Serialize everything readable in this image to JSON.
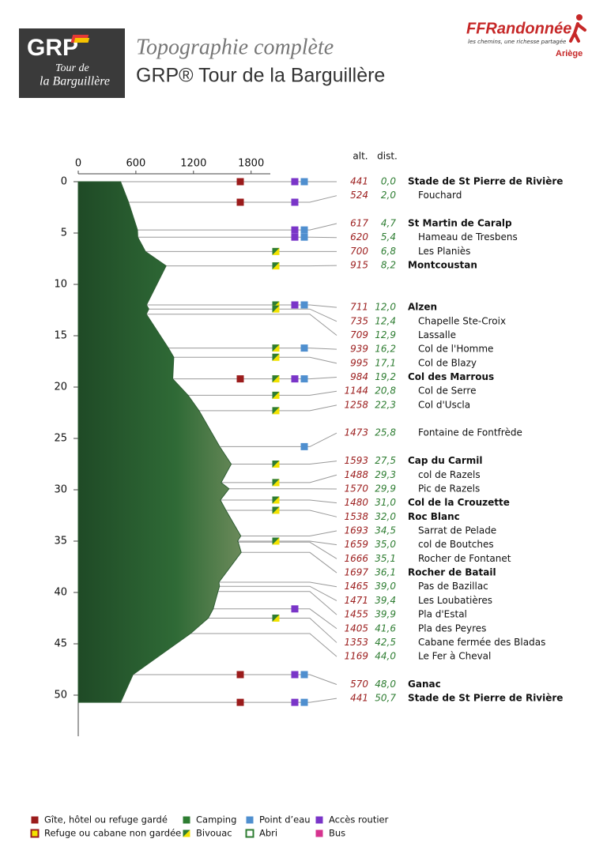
{
  "logo": {
    "title": "GRP",
    "lines": [
      "Tour de",
      "la Barguillère"
    ]
  },
  "brand": {
    "name": "FFRandonnée",
    "tagline": "les chemins, une richesse partagée",
    "region": "Ariège"
  },
  "chart_data": {
    "type": "profile",
    "title": "Topographie complète",
    "subtitle": "GRP® Tour de la Barguillère",
    "column_labels": [
      "alt.",
      "dist."
    ],
    "xlim": [
      0,
      2000
    ],
    "xticks": [
      0,
      600,
      1200,
      1800
    ],
    "ylim": [
      0,
      54
    ],
    "yticks": [
      0,
      5,
      10,
      15,
      20,
      25,
      30,
      35,
      40,
      45,
      50
    ],
    "color": "#2f5e34",
    "categories": [
      "Stade de St Pierre de Rivière",
      "Fouchard",
      "St Martin de Caralp",
      "Hameau de Tresbens",
      "Les Planiès",
      "Montcoustan",
      "Alzen",
      "Chapelle Ste-Croix",
      "Lassalle",
      "Col de l'Homme",
      "Col de Blazy",
      "Col des Marrous",
      "Col de Serre",
      "Col d'Uscla",
      "Fontaine de Fontfrède",
      "Cap du Carmil",
      "col de Razels",
      "Pic de Razels",
      "Col de la Crouzette",
      "Roc Blanc",
      "Sarrat de Pelade",
      "col de Boutches",
      "Rocher de Fontanet",
      "Rocher de Batail",
      "Pas de Bazillac",
      "Les Loubatières",
      "Pla d'Estal",
      "Pla des Peyres",
      "Cabane fermée des Bladas",
      "Le Fer à Cheval",
      "Ganac",
      "Stade de St Pierre de Rivière"
    ],
    "values": [
      441,
      524,
      617,
      620,
      700,
      915,
      711,
      735,
      709,
      939,
      995,
      984,
      1144,
      1258,
      1473,
      1593,
      1488,
      1570,
      1480,
      1538,
      1693,
      1659,
      1666,
      1697,
      1465,
      1471,
      1455,
      1405,
      1353,
      1169,
      570,
      441
    ],
    "dist": [
      0,
      2,
      4.7,
      5.4,
      6.8,
      8.2,
      12,
      12.4,
      12.9,
      16.2,
      17.1,
      19.2,
      20.8,
      22.3,
      25.8,
      27.5,
      29.3,
      29.9,
      31,
      32,
      34.5,
      35,
      35.1,
      36.1,
      39,
      39.4,
      39.9,
      41.6,
      42.5,
      44,
      48,
      50.7
    ],
    "dist_labels": [
      "0,0",
      "2,0",
      "4,7",
      "5,4",
      "6,8",
      "8,2",
      "12,0",
      "12,4",
      "12,9",
      "16,2",
      "17,1",
      "19,2",
      "20,8",
      "22,3",
      "25,8",
      "27,5",
      "29,3",
      "29,9",
      "31,0",
      "32,0",
      "34,5",
      "35,0",
      "35,1",
      "36,1",
      "39,0",
      "39,4",
      "39,9",
      "41,6",
      "42,5",
      "44,0",
      "48,0",
      "50,7"
    ],
    "major": [
      true,
      false,
      true,
      false,
      false,
      true,
      true,
      false,
      false,
      false,
      false,
      true,
      false,
      false,
      false,
      true,
      false,
      false,
      true,
      true,
      false,
      false,
      false,
      true,
      false,
      false,
      false,
      false,
      false,
      false,
      true,
      true
    ],
    "icons": [
      [
        0,
        3,
        2
      ],
      [
        0,
        3
      ],
      [
        3,
        2
      ],
      [
        3,
        2
      ],
      [
        5
      ],
      [
        5
      ],
      [
        5,
        3,
        2
      ],
      [
        5
      ],
      [],
      [
        5,
        2
      ],
      [
        5
      ],
      [
        0,
        5,
        3,
        2
      ],
      [
        5
      ],
      [
        5
      ],
      [
        2
      ],
      [
        5
      ],
      [
        5
      ],
      [],
      [
        5
      ],
      [
        5
      ],
      [],
      [
        5
      ],
      [],
      [],
      [],
      [],
      [],
      [
        3
      ],
      [
        5
      ],
      [],
      [
        0,
        3,
        2
      ],
      [
        0,
        3,
        2
      ]
    ],
    "alt_color": "#9b1c1c",
    "dist_color": "#2e7d32",
    "legend": [
      {
        "label": "Gîte, hôtel ou refuge gardé",
        "color": "#9b1c1c"
      },
      {
        "label": "Camping",
        "color": "#2e7d32"
      },
      {
        "label": "Point d’eau",
        "color": "#4f8fcf"
      },
      {
        "label": "Accès routier",
        "color": "#7a35c8"
      },
      {
        "label": "Refuge ou cabane non gardée",
        "color": "#f2e200",
        "border": "#9b1c1c"
      },
      {
        "label": "Bivouac",
        "color": "#2e7d32",
        "color2": "#f2e200"
      },
      {
        "label": "Abri",
        "color": "#ffffff",
        "border": "#2e7d32"
      },
      {
        "label": "Bus",
        "color": "#d6338f"
      }
    ]
  }
}
